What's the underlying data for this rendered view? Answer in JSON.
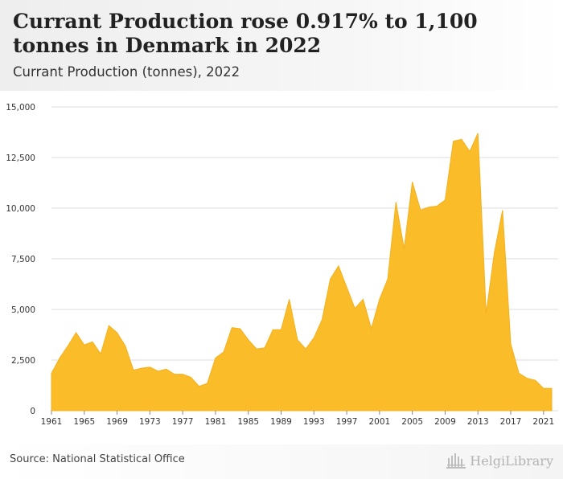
{
  "header": {
    "title": "Currant Production rose 0.917% to 1,100 tonnes in Denmark in 2022",
    "subtitle": "Currant Production (tonnes), 2022"
  },
  "footer": {
    "source": "Source: National Statistical Office",
    "brand": "HelgiLibrary"
  },
  "colors": {
    "area_fill": "#fbbc2a",
    "area_stroke": "#f4b01c",
    "grid": "#dddddd",
    "axis_text": "#333333"
  },
  "chart_data": {
    "type": "area",
    "title": "Currant Production (tonnes), 2022",
    "xlabel": "",
    "ylabel": "",
    "ylim": [
      0,
      15000
    ],
    "yticks": [
      0,
      2500,
      5000,
      7500,
      10000,
      12500,
      15000
    ],
    "ytick_labels": [
      "0",
      "2,500",
      "5,000",
      "7,500",
      "10,000",
      "12,500",
      "15,000"
    ],
    "xticks": [
      1961,
      1965,
      1969,
      1973,
      1977,
      1981,
      1985,
      1989,
      1993,
      1997,
      2001,
      2005,
      2009,
      2013,
      2017,
      2021
    ],
    "grid": true,
    "legend": "none",
    "x": [
      1961,
      1962,
      1963,
      1964,
      1965,
      1966,
      1967,
      1968,
      1969,
      1970,
      1971,
      1972,
      1973,
      1974,
      1975,
      1976,
      1977,
      1978,
      1979,
      1980,
      1981,
      1982,
      1983,
      1984,
      1985,
      1986,
      1987,
      1988,
      1989,
      1990,
      1991,
      1992,
      1993,
      1994,
      1995,
      1996,
      1997,
      1998,
      1999,
      2000,
      2001,
      2002,
      2003,
      2004,
      2005,
      2006,
      2007,
      2008,
      2009,
      2010,
      2011,
      2012,
      2013,
      2014,
      2015,
      2016,
      2017,
      2018,
      2019,
      2020,
      2021,
      2022
    ],
    "series": [
      {
        "values": [
          1850,
          2600,
          3200,
          3850,
          3250,
          3400,
          2800,
          4200,
          3850,
          3200,
          2000,
          2100,
          2150,
          1950,
          2050,
          1800,
          1800,
          1650,
          1200,
          1350,
          2600,
          2900,
          4100,
          4050,
          3500,
          3050,
          3100,
          4000,
          4000,
          5500,
          3500,
          3050,
          3600,
          4500,
          6500,
          7150,
          6100,
          5050,
          5500,
          4050,
          5500,
          6500,
          10300,
          8000,
          11300,
          9900,
          10050,
          10100,
          10400,
          13300,
          13400,
          12800,
          13700,
          4800,
          7800,
          9900,
          3300,
          1850,
          1600,
          1500,
          1100,
          1100
        ]
      }
    ]
  }
}
